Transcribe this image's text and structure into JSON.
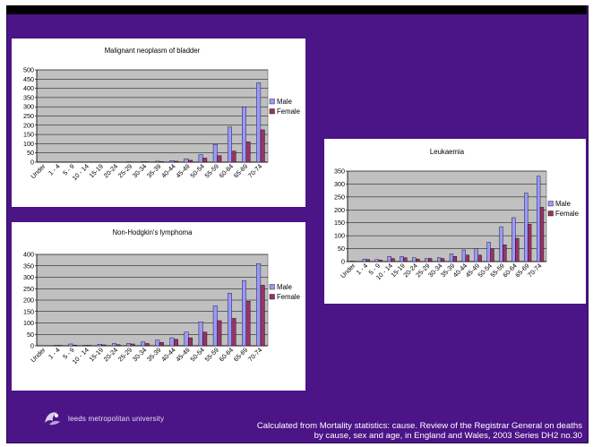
{
  "footer": {
    "logo_text": "leeds metropolitan university",
    "caption_line1": "Calculated from Mortality statistics: cause. Review of the Registrar General on deaths",
    "caption_line2": "by cause, sex and age, in England and Wales, 2003 Series DH2 no.30"
  },
  "colors": {
    "background": "#4b1487",
    "male": "#9999ff",
    "female": "#993366",
    "plot_area": "#c0c0c0"
  },
  "chart_data": [
    {
      "type": "bar",
      "title": "Malignant neoplasm of bladder",
      "categories": [
        "Under",
        "1 - 4",
        "5 - 9",
        "10 - 14",
        "15-19",
        "20-24",
        "25-29",
        "30-34",
        "35-39",
        "40-44",
        "45-49",
        "50-54",
        "55-59",
        "60-64",
        "65-69",
        "70-74"
      ],
      "series": [
        {
          "name": "Male",
          "values": [
            0,
            0,
            0,
            0,
            0,
            1,
            2,
            3,
            5,
            8,
            18,
            40,
            95,
            190,
            300,
            430
          ]
        },
        {
          "name": "Female",
          "values": [
            0,
            0,
            0,
            0,
            0,
            1,
            1,
            2,
            3,
            5,
            10,
            22,
            35,
            60,
            110,
            175
          ]
        }
      ],
      "ylim": [
        0,
        500
      ],
      "yticks": [
        0,
        50,
        100,
        150,
        200,
        250,
        300,
        350,
        400,
        450,
        500
      ],
      "legend": "right",
      "grid": true
    },
    {
      "type": "bar",
      "title": "Non-Hodgkin's lymphoma",
      "categories": [
        "Under",
        "1 - 4",
        "5 - 9",
        "10 - 14",
        "15-19",
        "20-24",
        "25-29",
        "30-34",
        "35-39",
        "40-44",
        "45-49",
        "50-54",
        "55-59",
        "60-64",
        "65-69",
        "70-74"
      ],
      "series": [
        {
          "name": "Male",
          "values": [
            0,
            3,
            8,
            3,
            7,
            10,
            10,
            17,
            25,
            35,
            60,
            105,
            175,
            230,
            285,
            360
          ]
        },
        {
          "name": "Female",
          "values": [
            0,
            2,
            3,
            2,
            4,
            5,
            8,
            10,
            15,
            28,
            35,
            60,
            110,
            120,
            195,
            265
          ]
        }
      ],
      "ylim": [
        0,
        400
      ],
      "yticks": [
        0,
        50,
        100,
        150,
        200,
        250,
        300,
        350,
        400
      ],
      "legend": "right",
      "grid": true
    },
    {
      "type": "bar",
      "title": "Leukaemia",
      "categories": [
        "Under",
        "1 - 4",
        "5 - 9",
        "10 - 14",
        "15-19",
        "20-24",
        "25-29",
        "30-34",
        "35-39",
        "40-44",
        "45-49",
        "50-54",
        "55-59",
        "60-64",
        "65-69",
        "70-74"
      ],
      "series": [
        {
          "name": "Male",
          "values": [
            2,
            10,
            8,
            20,
            20,
            15,
            12,
            15,
            30,
            45,
            50,
            75,
            135,
            170,
            265,
            330
          ]
        },
        {
          "name": "Female",
          "values": [
            1,
            8,
            6,
            12,
            15,
            10,
            12,
            12,
            20,
            25,
            25,
            50,
            65,
            90,
            145,
            210
          ]
        }
      ],
      "ylim": [
        0,
        350
      ],
      "yticks": [
        0,
        50,
        100,
        150,
        200,
        250,
        300,
        350
      ],
      "legend": "right",
      "grid": true
    }
  ]
}
